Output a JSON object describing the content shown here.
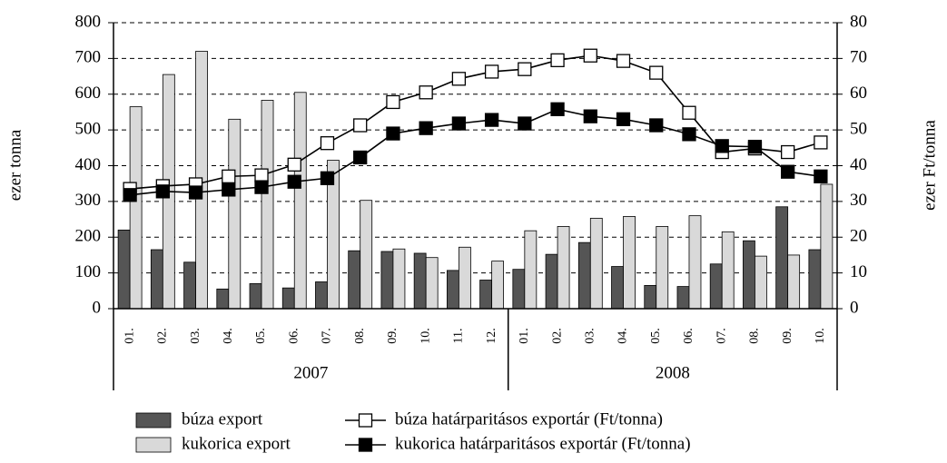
{
  "chart_data": {
    "type": "bar",
    "ylabel": "ezer tonna",
    "y2label": "ezer Ft/tonna",
    "category_groups": [
      {
        "label": "2007",
        "categories": [
          "01.",
          "02.",
          "03.",
          "04.",
          "05.",
          "06.",
          "07.",
          "08.",
          "09.",
          "10.",
          "11.",
          "12."
        ]
      },
      {
        "label": "2008",
        "categories": [
          "01.",
          "02.",
          "03.",
          "04.",
          "05.",
          "06.",
          "07.",
          "08.",
          "09.",
          "10."
        ]
      }
    ],
    "ylim": [
      0,
      800
    ],
    "yticks": [
      0,
      100,
      200,
      300,
      400,
      500,
      600,
      700,
      800
    ],
    "y2lim": [
      0,
      80
    ],
    "y2ticks": [
      0,
      10,
      20,
      30,
      40,
      50,
      60,
      70,
      80
    ],
    "grid": true,
    "series": [
      {
        "name": "búza export",
        "kind": "bar",
        "color": "#555555",
        "values": [
          220,
          165,
          130,
          55,
          70,
          58,
          75,
          162,
          160,
          155,
          107,
          80,
          110,
          152,
          185,
          118,
          65,
          62,
          125,
          190,
          285,
          165
        ]
      },
      {
        "name": "kukorica export",
        "kind": "bar",
        "color": "#d9d9d9",
        "values": [
          565,
          655,
          720,
          530,
          583,
          605,
          415,
          303,
          167,
          143,
          172,
          133,
          218,
          230,
          253,
          258,
          230,
          260,
          215,
          147,
          150,
          348
        ]
      },
      {
        "name": "búza határparitásos exportár (Ft/tonna)",
        "kind": "line",
        "axis": "y2",
        "color": "#000000",
        "marker_fill": "#ffffff",
        "values": [
          33.5,
          34.3,
          34.8,
          37,
          37.3,
          40.3,
          46.3,
          51.3,
          57.8,
          60.5,
          64.3,
          66.3,
          67,
          69.5,
          70.8,
          69.3,
          66,
          54.8,
          43.8,
          44.8,
          43.8,
          46.5
        ]
      },
      {
        "name": "kukorica határparitásos exportár (Ft/tonna)",
        "kind": "line",
        "axis": "y2",
        "color": "#000000",
        "marker_fill": "#000000",
        "values": [
          31.8,
          32.8,
          32.5,
          33.3,
          34,
          35.5,
          36.5,
          42.3,
          49,
          50.5,
          51.8,
          52.8,
          51.8,
          55.8,
          53.8,
          53,
          51.3,
          48.8,
          45.5,
          45.3,
          38.3,
          37
        ]
      }
    ]
  }
}
